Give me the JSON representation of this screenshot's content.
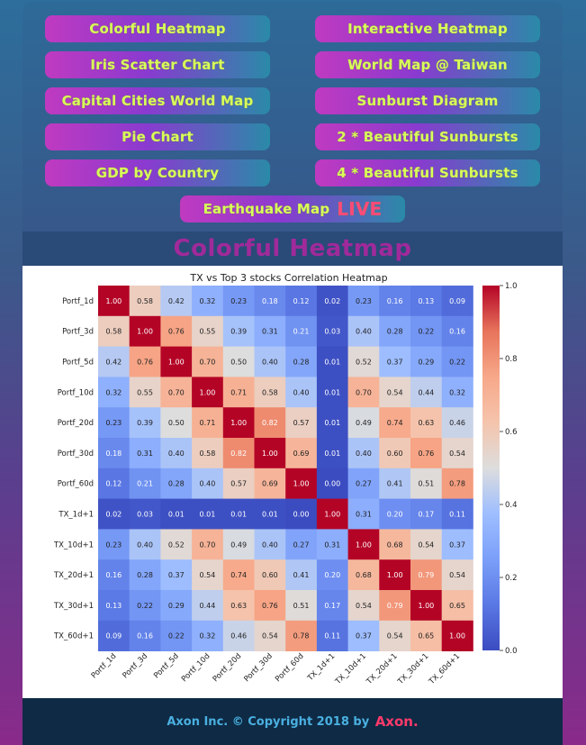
{
  "nav": {
    "buttons": [
      {
        "label": "Colorful Heatmap"
      },
      {
        "label": "Interactive Heatmap"
      },
      {
        "label": "Iris Scatter Chart"
      },
      {
        "label": "World Map @ Taiwan"
      },
      {
        "label": "Capital Cities World Map"
      },
      {
        "label": "Sunburst Diagram"
      },
      {
        "label": "Pie Chart"
      },
      {
        "label": "2 * Beautiful Sunbursts"
      },
      {
        "label": "GDP by Country"
      },
      {
        "label": "4 * Beautiful Sunbursts"
      }
    ],
    "earthquake": {
      "label": "Earthquake Map",
      "live": "LIVE"
    }
  },
  "page_title": "Colorful Heatmap",
  "footer": {
    "text": "Axon Inc. © Copyright 2018 by",
    "brand": "Axon."
  },
  "colors": {
    "low": "#3b4cc0",
    "mid": "#dddddd",
    "high": "#b40426"
  },
  "chart_data": {
    "type": "heatmap",
    "title": "TX vs Top 3 stocks Correlation Heatmap",
    "rows": [
      "Portf_1d",
      "Portf_3d",
      "Portf_5d",
      "Portf_10d",
      "Portf_20d",
      "Portf_30d",
      "Portf_60d",
      "TX_1d+1",
      "TX_10d+1",
      "TX_20d+1",
      "TX_30d+1",
      "TX_60d+1"
    ],
    "cols": [
      "Portf_1d",
      "Portf_3d",
      "Portf_5d",
      "Portf_10d",
      "Portf_20d",
      "Portf_30d",
      "Portf_60d",
      "TX_1d+1",
      "TX_10d+1",
      "TX_20d+1",
      "TX_30d+1",
      "TX_60d+1"
    ],
    "values": [
      [
        1.0,
        0.58,
        0.42,
        0.32,
        0.23,
        0.18,
        0.12,
        0.02,
        0.23,
        0.16,
        0.13,
        0.09
      ],
      [
        0.58,
        1.0,
        0.76,
        0.55,
        0.39,
        0.31,
        0.21,
        0.03,
        0.4,
        0.28,
        0.22,
        0.16
      ],
      [
        0.42,
        0.76,
        1.0,
        0.7,
        0.5,
        0.4,
        0.28,
        0.01,
        0.52,
        0.37,
        0.29,
        0.22
      ],
      [
        0.32,
        0.55,
        0.7,
        1.0,
        0.71,
        0.58,
        0.4,
        0.01,
        0.7,
        0.54,
        0.44,
        0.32
      ],
      [
        0.23,
        0.39,
        0.5,
        0.71,
        1.0,
        0.82,
        0.57,
        0.01,
        0.49,
        0.74,
        0.63,
        0.46
      ],
      [
        0.18,
        0.31,
        0.4,
        0.58,
        0.82,
        1.0,
        0.69,
        0.01,
        0.4,
        0.6,
        0.76,
        0.54
      ],
      [
        0.12,
        0.21,
        0.28,
        0.4,
        0.57,
        0.69,
        1.0,
        -0.0,
        0.27,
        0.41,
        0.51,
        0.78
      ],
      [
        0.02,
        0.03,
        0.01,
        0.01,
        0.01,
        0.01,
        -0.0,
        1.0,
        0.31,
        0.2,
        0.17,
        0.11
      ],
      [
        0.23,
        0.4,
        0.52,
        0.7,
        0.49,
        0.4,
        0.27,
        0.31,
        1.0,
        0.68,
        0.54,
        0.37
      ],
      [
        0.16,
        0.28,
        0.37,
        0.54,
        0.74,
        0.6,
        0.41,
        0.2,
        0.68,
        1.0,
        0.79,
        0.54
      ],
      [
        0.13,
        0.22,
        0.29,
        0.44,
        0.63,
        0.76,
        0.51,
        0.17,
        0.54,
        0.79,
        1.0,
        0.65
      ],
      [
        0.09,
        0.16,
        0.22,
        0.32,
        0.46,
        0.54,
        0.78,
        0.11,
        0.37,
        0.54,
        0.65,
        1.0
      ]
    ],
    "vmin": 0.0,
    "vmax": 1.0,
    "colorbar_ticks": [
      "0.0",
      "0.2",
      "0.4",
      "0.6",
      "0.8",
      "1.0"
    ],
    "colormap": "coolwarm"
  }
}
